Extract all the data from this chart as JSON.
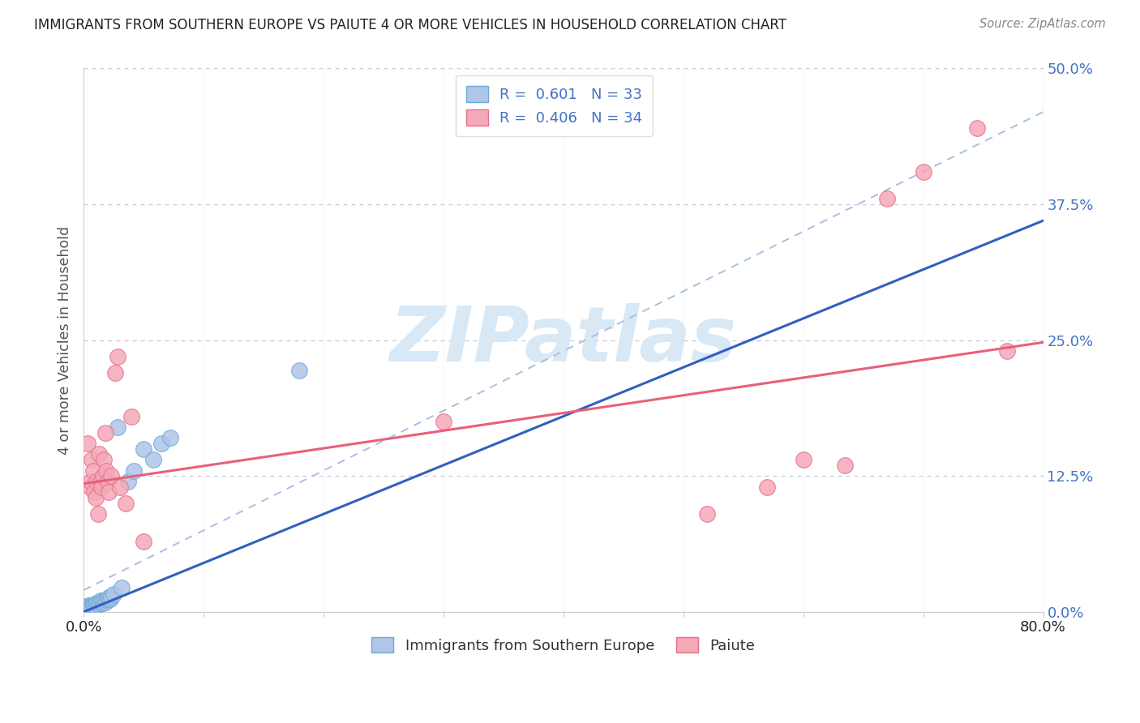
{
  "title": "IMMIGRANTS FROM SOUTHERN EUROPE VS PAIUTE 4 OR MORE VEHICLES IN HOUSEHOLD CORRELATION CHART",
  "source": "Source: ZipAtlas.com",
  "ylabel": "4 or more Vehicles in Household",
  "xmin": 0.0,
  "xmax": 0.8,
  "ymin": 0.0,
  "ymax": 0.5,
  "yticks": [
    0.0,
    0.125,
    0.25,
    0.375,
    0.5
  ],
  "ytick_labels": [
    "0.0%",
    "12.5%",
    "25.0%",
    "37.5%",
    "50.0%"
  ],
  "xtick_positions": [
    0.0,
    0.1,
    0.2,
    0.3,
    0.4,
    0.5,
    0.6,
    0.7,
    0.8
  ],
  "xtick_labels": [
    "0.0%",
    "",
    "",
    "",
    "",
    "",
    "",
    "",
    "80.0%"
  ],
  "legend_entry_blue": "R =  0.601   N = 33",
  "legend_entry_pink": "R =  0.406   N = 34",
  "legend_labels_bottom": [
    "Immigrants from Southern Europe",
    "Paiute"
  ],
  "blue_scatter_x": [
    0.002,
    0.003,
    0.004,
    0.005,
    0.006,
    0.007,
    0.008,
    0.009,
    0.01,
    0.01,
    0.011,
    0.012,
    0.013,
    0.014,
    0.015,
    0.016,
    0.017,
    0.018,
    0.019,
    0.02,
    0.021,
    0.022,
    0.023,
    0.025,
    0.028,
    0.032,
    0.037,
    0.042,
    0.05,
    0.058,
    0.065,
    0.072,
    0.18
  ],
  "blue_scatter_y": [
    0.004,
    0.005,
    0.006,
    0.004,
    0.006,
    0.005,
    0.007,
    0.006,
    0.007,
    0.005,
    0.008,
    0.007,
    0.008,
    0.01,
    0.009,
    0.008,
    0.01,
    0.009,
    0.011,
    0.012,
    0.013,
    0.012,
    0.014,
    0.016,
    0.17,
    0.022,
    0.12,
    0.13,
    0.15,
    0.14,
    0.155,
    0.16,
    0.222
  ],
  "pink_scatter_x": [
    0.003,
    0.005,
    0.006,
    0.007,
    0.008,
    0.009,
    0.01,
    0.011,
    0.012,
    0.013,
    0.014,
    0.015,
    0.016,
    0.017,
    0.018,
    0.019,
    0.02,
    0.021,
    0.023,
    0.026,
    0.028,
    0.03,
    0.035,
    0.04,
    0.05,
    0.3,
    0.52,
    0.57,
    0.6,
    0.635,
    0.67,
    0.7,
    0.745,
    0.77
  ],
  "pink_scatter_y": [
    0.155,
    0.115,
    0.12,
    0.14,
    0.13,
    0.11,
    0.105,
    0.12,
    0.09,
    0.145,
    0.12,
    0.115,
    0.125,
    0.14,
    0.165,
    0.13,
    0.12,
    0.11,
    0.125,
    0.22,
    0.235,
    0.115,
    0.1,
    0.18,
    0.065,
    0.175,
    0.09,
    0.115,
    0.14,
    0.135,
    0.38,
    0.405,
    0.445,
    0.24
  ],
  "blue_solid_line": {
    "x0": 0.0,
    "x1": 0.8,
    "y0": 0.0,
    "y1": 0.36
  },
  "blue_dashed_line": {
    "x0": 0.0,
    "x1": 0.8,
    "y0": 0.02,
    "y1": 0.46
  },
  "pink_solid_line": {
    "x0": 0.0,
    "x1": 0.8,
    "y0": 0.118,
    "y1": 0.248
  },
  "blue_solid_color": "#3060c0",
  "blue_dashed_color": "#a8c0e0",
  "pink_solid_color": "#e8607a",
  "blue_scatter_color": "#aec6e8",
  "pink_scatter_color": "#f4a8b8",
  "blue_scatter_edge": "#6fa8d8",
  "pink_scatter_edge": "#e8708a",
  "grid_color": "#c8c8d8",
  "background_color": "#ffffff",
  "watermark": "ZIPatlas",
  "watermark_color": "#d8e8f5",
  "title_color": "#222222",
  "axis_label_color": "#555555",
  "tick_label_color_y": "#4472c4",
  "source_color": "#888888"
}
